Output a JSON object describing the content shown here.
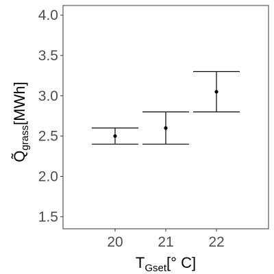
{
  "chart_data": {
    "type": "errorbar",
    "x": [
      "20",
      "21",
      "22"
    ],
    "series": [
      {
        "points": [
          {
            "x": "20",
            "y": 2.5,
            "lower": 2.4,
            "upper": 2.6
          },
          {
            "x": "21",
            "y": 2.6,
            "lower": 2.4,
            "upper": 2.8
          },
          {
            "x": "22",
            "y": 3.05,
            "lower": 2.8,
            "upper": 3.3
          }
        ]
      }
    ],
    "xlabel": {
      "main": "T",
      "sub": "Gset",
      "unit": "[° C]"
    },
    "ylabel": {
      "main": "Q̃",
      "sub": "grass",
      "unit": "[MWh]"
    },
    "xticks": [
      "20",
      "21",
      "22"
    ],
    "yticks": [
      "1.5",
      "2.0",
      "2.5",
      "3.0",
      "3.5",
      "4.0"
    ],
    "ylim": [
      1.35,
      4.12
    ],
    "grid": false,
    "colors": {
      "marks": "#000000",
      "tick_text": "#4d4d4d",
      "frame": "#333333"
    }
  }
}
